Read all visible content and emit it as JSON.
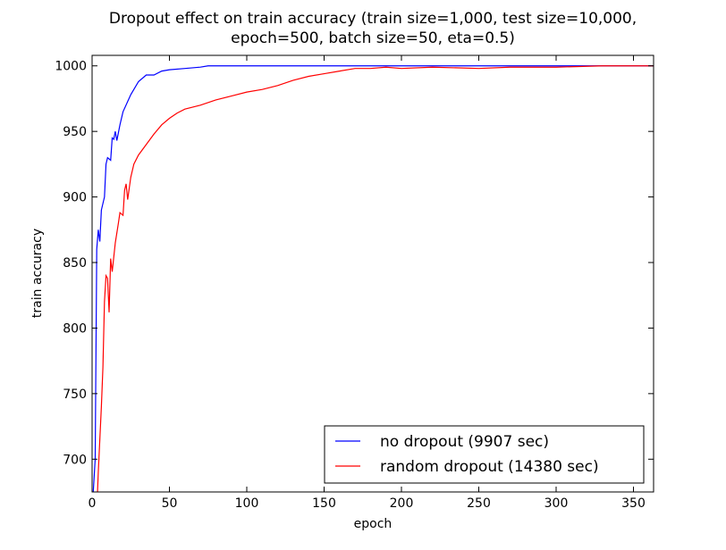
{
  "chart_data": {
    "type": "line",
    "title": [
      "Dropout effect on train accuracy (train size=1,000, test size=10,000,",
      "epoch=500, batch size=50, eta=0.5)"
    ],
    "xlabel": "epoch",
    "ylabel": "train accuracy",
    "xlim": [
      0,
      363
    ],
    "ylim": [
      675,
      1008
    ],
    "xticks": [
      0,
      50,
      100,
      150,
      200,
      250,
      300,
      350
    ],
    "yticks": [
      700,
      750,
      800,
      850,
      900,
      950,
      1000
    ],
    "legend": "lower right",
    "series": [
      {
        "name": "no dropout (9907 sec)",
        "color": "#0000ff",
        "x": [
          0,
          2,
          3,
          4,
          5,
          6,
          8,
          9,
          10,
          12,
          13,
          14,
          15,
          16,
          18,
          20,
          25,
          30,
          35,
          40,
          45,
          50,
          60,
          70,
          75,
          100,
          150,
          200,
          250,
          300,
          363
        ],
        "values": [
          660,
          700,
          860,
          875,
          866,
          890,
          900,
          925,
          930,
          928,
          945,
          944,
          950,
          943,
          955,
          965,
          978,
          988,
          993,
          993,
          996,
          997,
          998,
          999,
          1000,
          1000,
          1000,
          1000,
          1000,
          1000,
          1000
        ]
      },
      {
        "name": "random dropout (14380 sec)",
        "color": "#ff0000",
        "x": [
          3,
          4,
          6,
          7,
          8,
          9,
          10,
          11,
          12,
          13,
          15,
          17,
          18,
          20,
          21,
          22,
          23,
          25,
          27,
          30,
          35,
          40,
          45,
          50,
          55,
          60,
          70,
          80,
          90,
          100,
          110,
          120,
          130,
          140,
          150,
          160,
          170,
          180,
          190,
          200,
          220,
          250,
          270,
          300,
          330,
          363
        ],
        "values": [
          660,
          690,
          740,
          770,
          820,
          840,
          838,
          812,
          853,
          843,
          865,
          880,
          888,
          886,
          905,
          910,
          898,
          915,
          925,
          932,
          940,
          948,
          955,
          960,
          964,
          967,
          970,
          974,
          977,
          980,
          982,
          985,
          989,
          992,
          994,
          996,
          998,
          998,
          999,
          998,
          999,
          998,
          999,
          999,
          1000,
          1000
        ]
      }
    ]
  }
}
